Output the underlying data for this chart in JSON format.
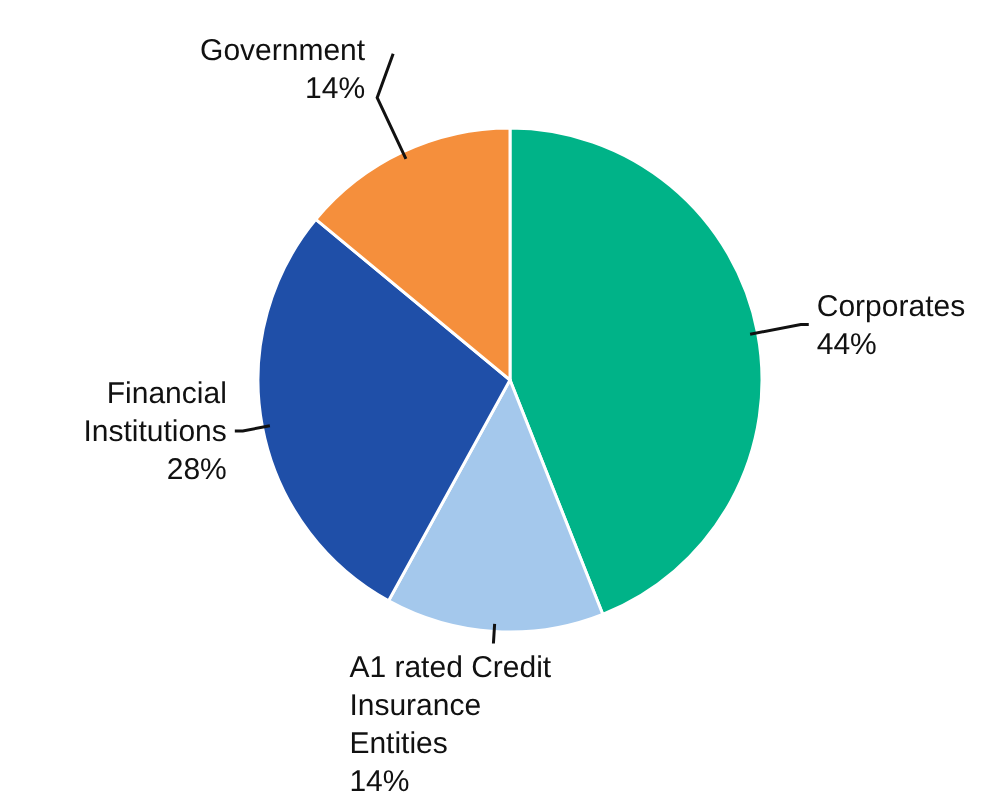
{
  "chart_data": {
    "type": "pie",
    "categories": [
      "Corporates",
      "A1 rated Credit Insurance Entities",
      "Financial Institutions",
      "Government"
    ],
    "values": [
      44,
      14,
      28,
      14
    ],
    "value_labels": [
      "44%",
      "14%",
      "28%",
      "14%"
    ],
    "colors": [
      "#00b388",
      "#a4c8ec",
      "#1f4fa8",
      "#f58f3c"
    ]
  }
}
